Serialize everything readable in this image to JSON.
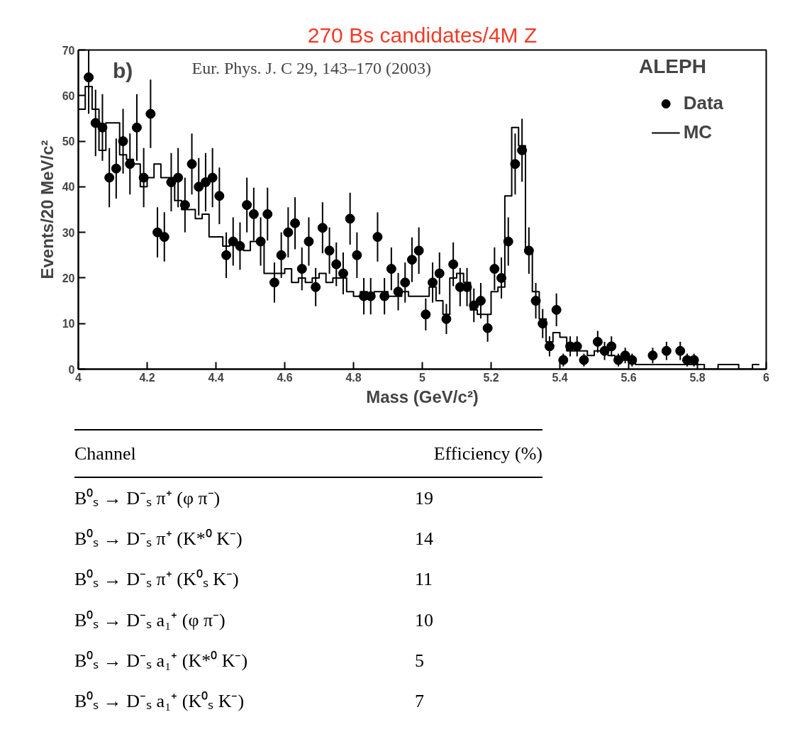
{
  "chart_data": {
    "type": "scatter",
    "title": "270 Bs candidates/4M Z",
    "xlabel": "Mass (GeV/c²)",
    "ylabel": "Events/20 MeV/c²",
    "xlim": [
      4,
      6
    ],
    "ylim": [
      0,
      70
    ],
    "xticks": [
      4,
      {
        "value": 4.2,
        "label": "4.2"
      },
      {
        "value": 4.4,
        "label": "4.4"
      },
      {
        "value": 4.6,
        "label": "4.6"
      },
      {
        "value": 4.8,
        "label": "4.8"
      },
      5,
      {
        "value": 5.2,
        "label": "5.2"
      },
      {
        "value": 5.4,
        "label": "5.4"
      },
      {
        "value": 5.6,
        "label": "5.6"
      },
      {
        "value": 5.8,
        "label": "5.8"
      },
      6
    ],
    "yticks": [
      0,
      10,
      20,
      30,
      40,
      50,
      60,
      70
    ],
    "grid": false,
    "legend": "top right",
    "annotations": [
      "b)",
      "Eur. Phys. J. C 29, 143–170 (2003)",
      "ALEPH",
      "Channel",
      "Efficiency (%)",
      "B⁰ₛ → D⁻ₛ π⁺ (φ π⁻)",
      "19",
      "B⁰ₛ → D⁻ₛ π⁺ (K*⁰ K⁻)",
      "14",
      "B⁰ₛ → D⁻ₛ π⁺ (K⁰ₛ K⁻)",
      "11",
      "B⁰ₛ → D⁻ₛ a₁⁺ (φ π⁻)",
      "10",
      "B⁰ₛ → D⁻ₛ a₁⁺ (K*⁰ K⁻)",
      "5",
      "B⁰ₛ → D⁻ₛ a₁⁺ (K⁰ₛ K⁻)",
      "7"
    ],
    "series": [
      {
        "name": "Data",
        "color": "#000000",
        "marker": "circle",
        "x": [
          4.03,
          4.05,
          4.07,
          4.09,
          4.11,
          4.13,
          4.15,
          4.17,
          4.19,
          4.21,
          4.23,
          4.25,
          4.27,
          4.29,
          4.31,
          4.33,
          4.35,
          4.37,
          4.39,
          4.41,
          4.43,
          4.45,
          4.47,
          4.49,
          4.51,
          4.53,
          4.55,
          4.57,
          4.59,
          4.61,
          4.63,
          4.65,
          4.67,
          4.69,
          4.71,
          4.73,
          4.75,
          4.77,
          4.79,
          4.81,
          4.83,
          4.85,
          4.87,
          4.89,
          4.91,
          4.93,
          4.95,
          4.97,
          4.99,
          5.01,
          5.03,
          5.05,
          5.07,
          5.09,
          5.11,
          5.13,
          5.15,
          5.17,
          5.19,
          5.21,
          5.23,
          5.25,
          5.27,
          5.29,
          5.31,
          5.33,
          5.35,
          5.37,
          5.39,
          5.41,
          5.43,
          5.45,
          5.47,
          5.51,
          5.53,
          5.55,
          5.57,
          5.59,
          5.61,
          5.67,
          5.71,
          5.75,
          5.77,
          5.79
        ],
        "values": [
          64,
          54,
          53,
          42,
          44,
          50,
          45,
          53,
          42,
          56,
          30,
          29,
          41,
          42,
          36,
          45,
          40,
          41,
          42,
          38,
          25,
          28,
          27,
          36,
          34,
          28,
          34,
          19,
          25,
          30,
          32,
          22,
          28,
          18,
          31,
          26,
          23,
          21,
          33,
          25,
          16,
          16,
          29,
          16,
          22,
          17,
          19,
          24,
          26,
          12,
          19,
          21,
          11,
          23,
          18,
          18,
          14,
          15,
          9,
          22,
          20,
          28,
          45,
          48,
          26,
          15,
          10,
          5,
          13,
          2,
          5,
          5,
          2,
          6,
          4,
          5,
          2,
          3,
          2,
          3,
          4,
          4,
          2,
          2
        ],
        "errors": [
          8,
          7.3,
          7.3,
          6.5,
          6.6,
          7.1,
          6.7,
          7.3,
          6.5,
          7.5,
          5.5,
          5.4,
          6.4,
          6.5,
          6,
          6.7,
          6.3,
          6.4,
          6.5,
          6.2,
          5,
          5.3,
          5.2,
          6,
          5.8,
          5.3,
          5.8,
          4.4,
          5,
          5.5,
          5.7,
          4.7,
          5.3,
          4.2,
          5.6,
          5.1,
          4.8,
          4.6,
          5.7,
          5,
          4,
          4,
          5.4,
          4,
          4.7,
          4.1,
          4.4,
          4.9,
          5.1,
          3.5,
          4.4,
          4.6,
          3.3,
          4.8,
          4.2,
          4.2,
          3.7,
          3.9,
          3,
          4.7,
          4.5,
          5.3,
          6.7,
          6.9,
          5.1,
          3.9,
          3.2,
          2.2,
          3.6,
          1.4,
          2.2,
          2.2,
          1.4,
          2.4,
          2,
          2.2,
          1.4,
          1.7,
          1.4,
          1.7,
          2,
          2,
          1.4,
          1.4
        ]
      },
      {
        "name": "MC",
        "type": "step",
        "color": "#000000",
        "line_style": "solid",
        "x": [
          4.0,
          4.02,
          4.04,
          4.06,
          4.08,
          4.1,
          4.12,
          4.14,
          4.16,
          4.18,
          4.2,
          4.22,
          4.24,
          4.26,
          4.28,
          4.3,
          4.32,
          4.34,
          4.36,
          4.38,
          4.4,
          4.42,
          4.44,
          4.46,
          4.48,
          4.5,
          4.52,
          4.54,
          4.56,
          4.58,
          4.6,
          4.62,
          4.64,
          4.66,
          4.68,
          4.7,
          4.72,
          4.74,
          4.76,
          4.78,
          4.8,
          4.82,
          4.84,
          4.86,
          4.88,
          4.9,
          4.92,
          4.94,
          4.96,
          4.98,
          5.0,
          5.02,
          5.04,
          5.06,
          5.08,
          5.1,
          5.12,
          5.14,
          5.16,
          5.18,
          5.2,
          5.22,
          5.24,
          5.26,
          5.28,
          5.3,
          5.32,
          5.34,
          5.36,
          5.38,
          5.4,
          5.42,
          5.44,
          5.46,
          5.48,
          5.5,
          5.52,
          5.54,
          5.56,
          5.58,
          5.6,
          5.62,
          5.64,
          5.66,
          5.68,
          5.7,
          5.72,
          5.74,
          5.76,
          5.78,
          5.8,
          5.82,
          5.84,
          5.86,
          5.88,
          5.9,
          5.92,
          5.94,
          5.96,
          5.98
        ],
        "values": [
          57,
          62,
          57,
          48,
          54,
          54,
          47,
          46,
          45,
          40,
          42,
          45,
          42,
          42,
          37,
          35,
          35,
          33,
          34,
          29,
          29,
          27,
          28,
          27,
          26,
          28,
          28,
          21,
          21,
          21,
          22,
          19,
          20,
          19,
          20,
          21,
          19,
          20,
          20,
          17,
          16,
          17,
          16,
          17,
          17,
          16,
          16,
          17,
          16,
          16,
          16,
          18,
          15,
          12,
          20,
          21,
          19,
          13,
          12,
          12,
          17,
          18,
          38,
          53,
          49,
          26,
          17,
          11,
          6,
          8,
          7,
          4,
          4,
          4,
          3,
          4,
          4,
          3,
          2,
          2,
          2,
          1,
          1,
          1,
          1,
          1,
          1,
          1,
          1,
          1,
          1,
          0,
          0,
          1,
          1,
          1,
          0,
          0,
          1,
          1
        ]
      }
    ]
  }
}
